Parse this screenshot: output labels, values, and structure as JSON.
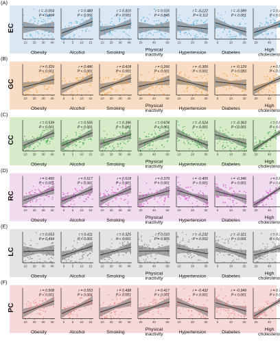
{
  "figure": {
    "columns": [
      "Obesity",
      "Alcohol",
      "Smoking",
      "Physical inactivity",
      "Hypertension",
      "Diabetes",
      "High cholesterol"
    ],
    "rows": [
      {
        "panel": "(A)",
        "cancer": "EC",
        "band_color": "#dbe8f4",
        "point_color": "#3ea8e0"
      },
      {
        "panel": "(B)",
        "cancer": "GC",
        "band_color": "#f9dcc4",
        "point_color": "#f29a2e"
      },
      {
        "panel": "(C)",
        "cancer": "CC",
        "band_color": "#d7ebc9",
        "point_color": "#2fa83a"
      },
      {
        "panel": "(D)",
        "cancer": "RC",
        "band_color": "#f0dbef",
        "point_color": "#d63fc6"
      },
      {
        "panel": "(E)",
        "cancer": "LC",
        "band_color": "#e4e4e4",
        "point_color": "#7a7a7a"
      },
      {
        "panel": "(F)",
        "cancer": "PC",
        "band_color": "#f8d9d9",
        "point_color": "#ef7670"
      }
    ]
  },
  "chart_data": {
    "type": "scatter",
    "description_label": "correlation matrix of scatter plots with linear fits",
    "row_labels": [
      "EC",
      "GC",
      "CC",
      "RC",
      "LC",
      "PC"
    ],
    "column_labels": [
      "Obesity",
      "Alcohol",
      "Smoking",
      "Physical inactivity",
      "Hypertension",
      "Diabetes",
      "High cholesterol"
    ],
    "x_ticks": [
      [
        "10",
        "20",
        "30",
        "40"
      ],
      [
        "0",
        "5",
        "10",
        "15"
      ],
      [
        "10",
        "20",
        "30",
        "40"
      ],
      [
        "20",
        "40",
        "60"
      ],
      [
        "10",
        "20",
        "30"
      ],
      [
        "0",
        "10",
        "20"
      ],
      [
        "20",
        "40",
        "60"
      ]
    ],
    "r_values": [
      [
        "r = -0.004",
        "r = 0.483",
        "r = 0.310",
        "r = 0.016",
        "r = -0.122",
        "r = -0.389",
        "r = 0.433"
      ],
      [
        "r = 0.329",
        "r = 0.486",
        "r = 0.418",
        "r = 0.266",
        "r = -0.309",
        "r = -0.129",
        "r = 0.592"
      ],
      [
        "r = 0.539",
        "r = 0.555",
        "r = 0.396",
        "r = 0.474",
        "r = -0.524",
        "r = -0.363",
        "r = 0.845"
      ],
      [
        "r = 0.450",
        "r = 0.517",
        "r = 0.518",
        "r = 0.379",
        "r = -0.405",
        "r = -0.346",
        "r = 0.837"
      ],
      [
        "r = 0.053",
        "r = 0.411",
        "r = 0.325",
        "r = 0.010",
        "r = -0.232",
        "r = -0.321",
        "r = 0.355"
      ],
      [
        "r = 0.508",
        "r = 0.553",
        "r = 0.438",
        "r = 0.417",
        "r = -0.432",
        "r = -0.349",
        "r = 0.780"
      ]
    ],
    "p_values": [
      [
        "P = 0.964",
        "P < 0.001",
        "P < 0.001",
        "P = 0.845",
        "P = 0.112",
        "P < 0.001",
        "P < 0.001"
      ],
      [
        "P < 0.001",
        "P < 0.001",
        "P < 0.001",
        "P < 0.001",
        "P < 0.001",
        "P = 0.093",
        "P < 0.001"
      ],
      [
        "P < 0.001",
        "P < 0.001",
        "P < 0.001",
        "P < 0.001",
        "P < 0.001",
        "P < 0.001",
        "P < 0.001"
      ],
      [
        "P < 0.001",
        "P < 0.001",
        "P < 0.001",
        "P < 0.001",
        "P < 0.001",
        "P < 0.001",
        "P < 0.001"
      ],
      [
        "P = 0.494",
        "P < 0.001",
        "P < 0.001",
        "P = 0.905",
        "P = 0.002",
        "P < 0.001",
        "P < 0.001"
      ],
      [
        "P < 0.001",
        "P < 0.001",
        "P < 0.001",
        "P < 0.001",
        "P < 0.001",
        "P < 0.001",
        "P < 0.001"
      ]
    ],
    "grid": false,
    "legend": "none"
  }
}
